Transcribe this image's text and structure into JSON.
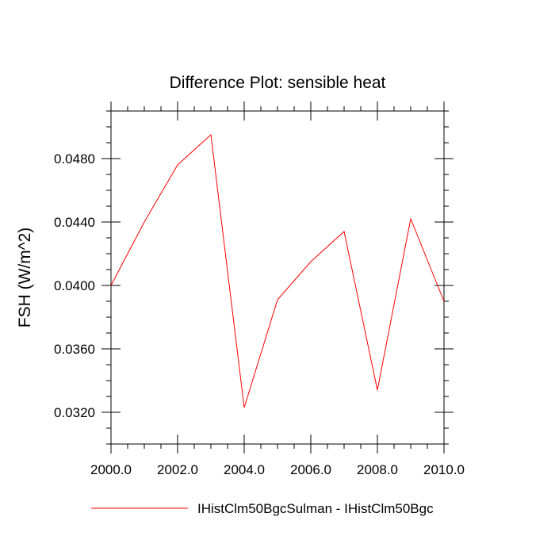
{
  "chart_data": {
    "type": "line",
    "title": "Difference Plot: sensible heat",
    "xlabel": "",
    "ylabel": "FSH  (W/m^2)",
    "xlim": [
      2000,
      2010
    ],
    "ylim": [
      0.03,
      0.051
    ],
    "x_ticks": [
      2000,
      2002,
      2004,
      2006,
      2008,
      2010
    ],
    "x_tick_labels": [
      "2000.0",
      "2002.0",
      "2004.0",
      "2006.0",
      "2008.0",
      "2010.0"
    ],
    "y_ticks": [
      0.032,
      0.036,
      0.04,
      0.044,
      0.048
    ],
    "y_tick_labels": [
      "0.0320",
      "0.0360",
      "0.0400",
      "0.0440",
      "0.0480"
    ],
    "grid": false,
    "legend_position": "bottom",
    "series": [
      {
        "name": "IHistClm50BgcSulman - IHistClm50Bgc",
        "color": "#ff0000",
        "x": [
          2000,
          2001,
          2002,
          2003,
          2004,
          2005,
          2006,
          2007,
          2008,
          2009,
          2010
        ],
        "y": [
          0.04,
          0.044,
          0.0476,
          0.0495,
          0.0323,
          0.0391,
          0.0415,
          0.0434,
          0.0334,
          0.0442,
          0.039
        ]
      }
    ]
  }
}
